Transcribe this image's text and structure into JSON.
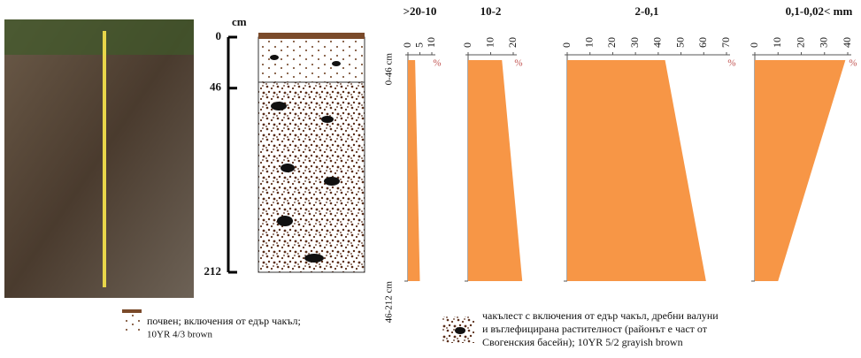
{
  "depth_scale": {
    "unit": "cm",
    "ticks": [
      0,
      46,
      212
    ]
  },
  "chart_data": [
    {
      "type": "area",
      "title": ">20-10",
      "axis_label": "%",
      "categories": [
        "0-46 cm",
        "46-212 cm"
      ],
      "values": [
        3,
        5
      ],
      "color": "#f79646",
      "xlim": [
        0,
        10
      ],
      "xticks": [
        0,
        5,
        10
      ]
    },
    {
      "type": "area",
      "title": "10-2",
      "axis_label": "%",
      "values": [
        15,
        24
      ],
      "color": "#f79646",
      "xlim": [
        0,
        20
      ],
      "xticks": [
        0,
        10,
        20
      ]
    },
    {
      "type": "area",
      "title": "2-0,1",
      "axis_label": "%",
      "values": [
        43,
        61
      ],
      "color": "#f79646",
      "xlim": [
        0,
        70
      ],
      "xticks": [
        0,
        10,
        20,
        30,
        40,
        50,
        60,
        70
      ]
    },
    {
      "type": "area",
      "title": "0,1-0,02< mm",
      "axis_label": "%",
      "values": [
        39,
        10
      ],
      "color": "#f79646",
      "xlim": [
        0,
        40
      ],
      "xticks": [
        0,
        10,
        20,
        30,
        40
      ]
    }
  ],
  "legend": [
    {
      "lines": [
        "почвен; включения от едър чакъл;",
        "10YR 4/3 brown"
      ]
    },
    {
      "lines": [
        "чакълест с включения от едър чакъл, дребни валуни",
        "и въглефицирана растителност (районът е част от",
        "Свогенския басейн); 10YR 5/2 grayish brown"
      ]
    }
  ]
}
